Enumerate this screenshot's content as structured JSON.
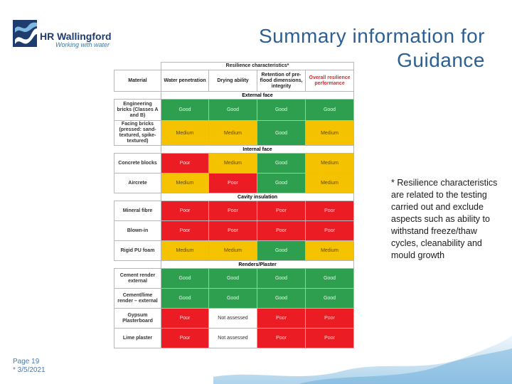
{
  "header": {
    "logo_name": "HR Wallingford",
    "logo_tagline": "Working with water",
    "title_line1": "Summary information for",
    "title_line2": "Guidance"
  },
  "table": {
    "group_header": "Resilience characteristics*",
    "columns": [
      "Material",
      "Water penetration",
      "Drying ability",
      "Retention of pre-flood dimensions, integrity",
      "Overall resilience performance"
    ],
    "sections": [
      {
        "title": "External face",
        "rows": [
          {
            "material": "Engineering bricks (Classes A and B)",
            "values": [
              "Good",
              "Good",
              "Good",
              "Good"
            ]
          },
          {
            "material": "Facing bricks (pressed: sand-textured, spike-textured)",
            "values": [
              "Medium",
              "Medium",
              "Good",
              "Medium"
            ]
          }
        ]
      },
      {
        "title": "Internal face",
        "rows": [
          {
            "material": "Concrete blocks",
            "values": [
              "Poor",
              "Medium",
              "Good",
              "Medium"
            ]
          },
          {
            "material": "Aircrete",
            "values": [
              "Medium",
              "Poor",
              "Good",
              "Medium"
            ]
          }
        ]
      },
      {
        "title": "Cavity insulation",
        "rows": [
          {
            "material": "Mineral fibre",
            "values": [
              "Poor",
              "Poor",
              "Poor",
              "Poor"
            ]
          },
          {
            "material": "Blown-in",
            "values": [
              "Poor",
              "Poor",
              "Poor",
              "Poor"
            ]
          },
          {
            "material": "Rigid PU foam",
            "values": [
              "Medium",
              "Medium",
              "Good",
              "Medium"
            ]
          }
        ]
      },
      {
        "title": "Renders/Plaster",
        "rows": [
          {
            "material": "Cement render external",
            "values": [
              "Good",
              "Good",
              "Good",
              "Good"
            ]
          },
          {
            "material": "Cement/lime render – external",
            "values": [
              "Good",
              "Good",
              "Good",
              "Good"
            ]
          },
          {
            "material": "Gypsum Plasterboard",
            "values": [
              "Poor",
              "Not assessed",
              "Poor",
              "Poor"
            ]
          },
          {
            "material": "Lime plaster",
            "values": [
              "Poor",
              "Not assessed",
              "Poor",
              "Poor"
            ]
          }
        ]
      }
    ],
    "colors": {
      "good": "#2e9e4f",
      "medium": "#f5c200",
      "poor": "#ec1c24"
    }
  },
  "note": "* Resilience characteristics are related to the testing carried out and exclude aspects such as ability to withstand freeze/thaw cycles, cleanability and mould growth",
  "footer": {
    "page": "Page 19",
    "date": "* 3/5/2021"
  }
}
